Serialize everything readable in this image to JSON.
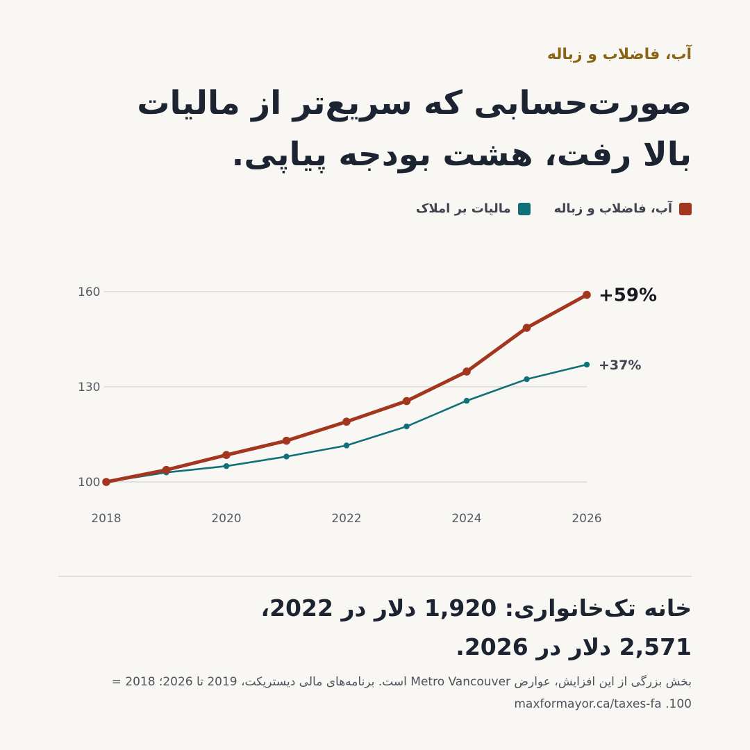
{
  "kicker": "آب، فاضلاب و زباله",
  "headline": {
    "line1": "صورت‌حسابی که سریع‌تر از مالیات",
    "line2": "بالا رفت، هشت بودجه پیاپی."
  },
  "colors": {
    "utilities": "#a3361f",
    "property_tax": "#0f7078",
    "gridline": "#dcdad4",
    "kicker": "#8a6313"
  },
  "chart_data": {
    "type": "line",
    "x": [
      2018,
      2019,
      2020,
      2021,
      2022,
      2023,
      2024,
      2025,
      2026
    ],
    "xticks": [
      "2018",
      "2020",
      "2022",
      "2024",
      "2026"
    ],
    "yticks": [
      "100",
      "130",
      "160"
    ],
    "ylim": [
      100,
      160
    ],
    "grid": true,
    "legend_placement": "top-right",
    "series": [
      {
        "name": "آب، فاضلاب و زباله",
        "values": [
          100,
          103.8,
          108.5,
          113,
          119,
          125.5,
          134.8,
          148.6,
          159
        ],
        "end_label": "+59%"
      },
      {
        "name": "مالیات بر املاک",
        "values": [
          100,
          103,
          105,
          108,
          111.5,
          117.5,
          125.6,
          132.4,
          137
        ],
        "end_label": "+37%"
      }
    ]
  },
  "callout": {
    "line1": "خانه تک‌خانواری: 1,920 دلار در 2022،",
    "line2": "2,571 دلار در 2026."
  },
  "footnote": {
    "line1": "بخش بزرگی از این افزایش، عوارض Metro Vancouver است. برنامه‌های مالی دیستریکت، 2019 تا 2026؛ 2018 =",
    "line2": "100. maxformayor.ca/taxes-fa"
  }
}
